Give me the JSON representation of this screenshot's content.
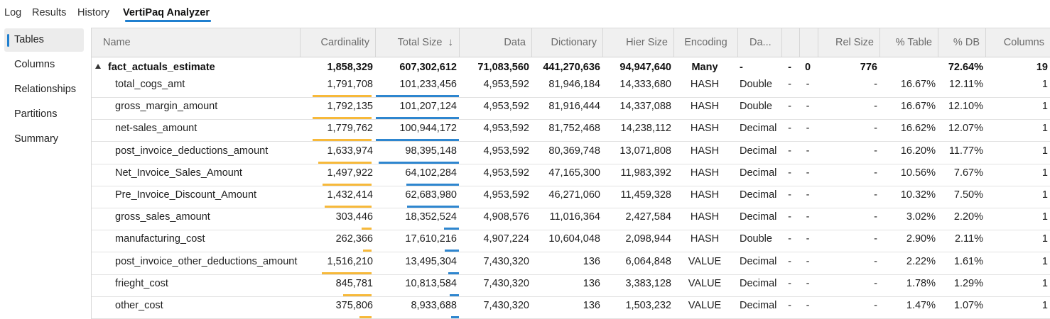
{
  "tabs": [
    "Log",
    "Results",
    "History",
    "VertiPaq Analyzer"
  ],
  "active_tab": "VertiPaq Analyzer",
  "sidebar": {
    "items": [
      "Tables",
      "Columns",
      "Relationships",
      "Partitions",
      "Summary"
    ],
    "active": "Tables"
  },
  "colors": {
    "accent": "#1f7fcf",
    "cardinality_bar": "#f7b93a",
    "size_bar": "#2e86cf"
  },
  "columns": [
    "Name",
    "Cardinality",
    "Total Size",
    "Data",
    "Dictionary",
    "Hier Size",
    "Encoding",
    "Da...",
    "",
    "",
    "Rel Size",
    "% Table",
    "% DB",
    "Columns"
  ],
  "sort_column": "Total Size",
  "sort_direction": "descending",
  "group": {
    "name": "fact_actuals_estimate",
    "cardinality": "1,858,329",
    "total_size": "607,302,612",
    "data": "71,083,560",
    "dictionary": "441,270,636",
    "hier_size": "94,947,640",
    "encoding": "Many",
    "data_type": "-",
    "c8": "-",
    "c9": "0",
    "rel_size": "776",
    "pct_table": "",
    "pct_db": "72.64%",
    "columns": "19"
  },
  "rows": [
    {
      "name": "total_cogs_amt",
      "cardinality": "1,791,708",
      "total_size": "101,233,456",
      "data": "4,953,592",
      "dictionary": "81,946,184",
      "hier_size": "14,333,680",
      "encoding": "HASH",
      "data_type": "Double",
      "c8": "-",
      "c9": "-",
      "rel_size": "-",
      "pct_table": "16.67%",
      "pct_db": "12.11%",
      "columns": "1",
      "card_fraction": 0.96,
      "size_fraction": 1.0
    },
    {
      "name": "gross_margin_amount",
      "cardinality": "1,792,135",
      "total_size": "101,207,124",
      "data": "4,953,592",
      "dictionary": "81,916,444",
      "hier_size": "14,337,088",
      "encoding": "HASH",
      "data_type": "Double",
      "c8": "-",
      "c9": "-",
      "rel_size": "-",
      "pct_table": "16.67%",
      "pct_db": "12.10%",
      "columns": "1",
      "card_fraction": 0.96,
      "size_fraction": 1.0
    },
    {
      "name": "net-sales_amount",
      "cardinality": "1,779,762",
      "total_size": "100,944,172",
      "data": "4,953,592",
      "dictionary": "81,752,468",
      "hier_size": "14,238,112",
      "encoding": "HASH",
      "data_type": "Decimal",
      "c8": "-",
      "c9": "-",
      "rel_size": "-",
      "pct_table": "16.62%",
      "pct_db": "12.07%",
      "columns": "1",
      "card_fraction": 0.96,
      "size_fraction": 1.0
    },
    {
      "name": "post_invoice_deductions_amount",
      "cardinality": "1,633,974",
      "total_size": "98,395,148",
      "data": "4,953,592",
      "dictionary": "80,369,748",
      "hier_size": "13,071,808",
      "encoding": "HASH",
      "data_type": "Decimal",
      "c8": "-",
      "c9": "-",
      "rel_size": "-",
      "pct_table": "16.20%",
      "pct_db": "11.77%",
      "columns": "1",
      "card_fraction": 0.87,
      "size_fraction": 0.97
    },
    {
      "name": "Net_Invoice_Sales_Amount",
      "cardinality": "1,497,922",
      "total_size": "64,102,284",
      "data": "4,953,592",
      "dictionary": "47,165,300",
      "hier_size": "11,983,392",
      "encoding": "HASH",
      "data_type": "Decimal",
      "c8": "-",
      "c9": "-",
      "rel_size": "-",
      "pct_table": "10.56%",
      "pct_db": "7.67%",
      "columns": "1",
      "card_fraction": 0.8,
      "size_fraction": 0.63
    },
    {
      "name": "Pre_Invoice_Discount_Amount",
      "cardinality": "1,432,414",
      "total_size": "62,683,980",
      "data": "4,953,592",
      "dictionary": "46,271,060",
      "hier_size": "11,459,328",
      "encoding": "HASH",
      "data_type": "Decimal",
      "c8": "-",
      "c9": "-",
      "rel_size": "-",
      "pct_table": "10.32%",
      "pct_db": "7.50%",
      "columns": "1",
      "card_fraction": 0.77,
      "size_fraction": 0.62
    },
    {
      "name": "gross_sales_amount",
      "cardinality": "303,446",
      "total_size": "18,352,524",
      "data": "4,908,576",
      "dictionary": "11,016,364",
      "hier_size": "2,427,584",
      "encoding": "HASH",
      "data_type": "Decimal",
      "c8": "-",
      "c9": "-",
      "rel_size": "-",
      "pct_table": "3.02%",
      "pct_db": "2.20%",
      "columns": "1",
      "card_fraction": 0.16,
      "size_fraction": 0.18
    },
    {
      "name": "manufacturing_cost",
      "cardinality": "262,366",
      "total_size": "17,610,216",
      "data": "4,907,224",
      "dictionary": "10,604,048",
      "hier_size": "2,098,944",
      "encoding": "HASH",
      "data_type": "Double",
      "c8": "-",
      "c9": "-",
      "rel_size": "-",
      "pct_table": "2.90%",
      "pct_db": "2.11%",
      "columns": "1",
      "card_fraction": 0.14,
      "size_fraction": 0.17
    },
    {
      "name": "post_invoice_other_deductions_amount",
      "cardinality": "1,516,210",
      "total_size": "13,495,304",
      "data": "7,430,320",
      "dictionary": "136",
      "hier_size": "6,064,848",
      "encoding": "VALUE",
      "data_type": "Decimal",
      "c8": "-",
      "c9": "-",
      "rel_size": "-",
      "pct_table": "2.22%",
      "pct_db": "1.61%",
      "columns": "1",
      "card_fraction": 0.81,
      "size_fraction": 0.13
    },
    {
      "name": "frieght_cost",
      "cardinality": "845,781",
      "total_size": "10,813,584",
      "data": "7,430,320",
      "dictionary": "136",
      "hier_size": "3,383,128",
      "encoding": "VALUE",
      "data_type": "Decimal",
      "c8": "-",
      "c9": "-",
      "rel_size": "-",
      "pct_table": "1.78%",
      "pct_db": "1.29%",
      "columns": "1",
      "card_fraction": 0.46,
      "size_fraction": 0.11
    },
    {
      "name": "other_cost",
      "cardinality": "375,806",
      "total_size": "8,933,688",
      "data": "7,430,320",
      "dictionary": "136",
      "hier_size": "1,503,232",
      "encoding": "VALUE",
      "data_type": "Decimal",
      "c8": "-",
      "c9": "-",
      "rel_size": "-",
      "pct_table": "1.47%",
      "pct_db": "1.07%",
      "columns": "1",
      "card_fraction": 0.2,
      "size_fraction": 0.09
    }
  ]
}
